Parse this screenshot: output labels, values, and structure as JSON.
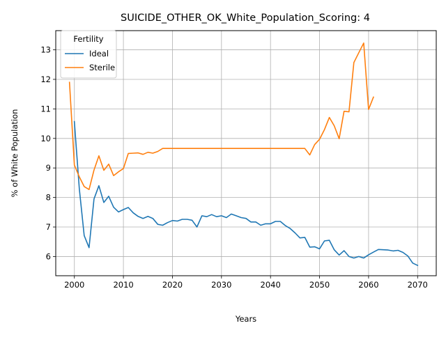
{
  "chart_data": {
    "type": "line",
    "title": "SUICIDE_OTHER_OK_White_Population_Scoring: 4",
    "xlabel": "Years",
    "ylabel": "% of White Population",
    "xlim": [
      1996.2,
      2073.8
    ],
    "ylim": [
      5.35,
      13.65
    ],
    "xticks": [
      2000,
      2010,
      2020,
      2030,
      2040,
      2050,
      2060,
      2070
    ],
    "yticks": [
      6,
      7,
      8,
      9,
      10,
      11,
      12,
      13
    ],
    "grid": true,
    "legend": {
      "title": "Fertility",
      "placement": "upper-left"
    },
    "series": [
      {
        "name": "Ideal",
        "color": "#1f77b4",
        "x": [
          2000,
          2001,
          2002,
          2003,
          2004,
          2005,
          2006,
          2007,
          2008,
          2009,
          2010,
          2011,
          2012,
          2013,
          2014,
          2015,
          2016,
          2017,
          2018,
          2019,
          2020,
          2021,
          2022,
          2023,
          2024,
          2025,
          2026,
          2027,
          2028,
          2029,
          2030,
          2031,
          2032,
          2033,
          2034,
          2035,
          2036,
          2037,
          2038,
          2039,
          2040,
          2041,
          2042,
          2043,
          2044,
          2045,
          2046,
          2047,
          2048,
          2049,
          2050,
          2051,
          2052,
          2053,
          2054,
          2055,
          2056,
          2057,
          2058,
          2059,
          2060,
          2061,
          2062,
          2063,
          2064,
          2065,
          2066,
          2067,
          2068,
          2069,
          2070
        ],
        "values": [
          10.57,
          8.3,
          6.71,
          6.3,
          7.95,
          8.4,
          7.83,
          8.04,
          7.67,
          7.51,
          7.59,
          7.66,
          7.48,
          7.36,
          7.29,
          7.36,
          7.29,
          7.09,
          7.06,
          7.15,
          7.22,
          7.2,
          7.26,
          7.26,
          7.23,
          7.0,
          7.38,
          7.35,
          7.42,
          7.35,
          7.38,
          7.32,
          7.44,
          7.38,
          7.32,
          7.29,
          7.17,
          7.17,
          7.06,
          7.11,
          7.11,
          7.19,
          7.19,
          7.05,
          6.95,
          6.8,
          6.63,
          6.65,
          6.32,
          6.33,
          6.26,
          6.53,
          6.55,
          6.23,
          6.05,
          6.2,
          6.0,
          5.95,
          6.0,
          5.95,
          6.06,
          6.15,
          6.24,
          6.23,
          6.22,
          6.19,
          6.21,
          6.14,
          6.02,
          5.78,
          5.7
        ]
      },
      {
        "name": "Sterile",
        "color": "#ff7f0e",
        "x": [
          1999,
          2000,
          2001,
          2002,
          2003,
          2004,
          2005,
          2006,
          2007,
          2008,
          2009,
          2010,
          2011,
          2012,
          2013,
          2014,
          2015,
          2016,
          2017,
          2018,
          2019,
          2020,
          2021,
          2022,
          2023,
          2024,
          2025,
          2026,
          2027,
          2028,
          2029,
          2030,
          2031,
          2032,
          2033,
          2034,
          2035,
          2036,
          2037,
          2038,
          2039,
          2040,
          2041,
          2042,
          2043,
          2044,
          2045,
          2046,
          2047,
          2048,
          2049,
          2050,
          2051,
          2052,
          2053,
          2054,
          2055,
          2056,
          2057,
          2058,
          2059,
          2060,
          2061
        ],
        "values": [
          11.9,
          9.1,
          8.7,
          8.37,
          8.27,
          8.93,
          9.41,
          8.92,
          9.13,
          8.74,
          8.87,
          8.98,
          9.49,
          9.5,
          9.51,
          9.46,
          9.53,
          9.5,
          9.56,
          9.66,
          9.66,
          9.66,
          9.66,
          9.66,
          9.66,
          9.66,
          9.66,
          9.66,
          9.66,
          9.66,
          9.66,
          9.66,
          9.66,
          9.66,
          9.66,
          9.66,
          9.66,
          9.66,
          9.66,
          9.66,
          9.66,
          9.66,
          9.66,
          9.66,
          9.66,
          9.66,
          9.66,
          9.66,
          9.66,
          9.44,
          9.79,
          9.97,
          10.3,
          10.71,
          10.43,
          9.99,
          10.92,
          10.9,
          12.57,
          12.9,
          13.23,
          10.98,
          11.4
        ]
      }
    ]
  }
}
